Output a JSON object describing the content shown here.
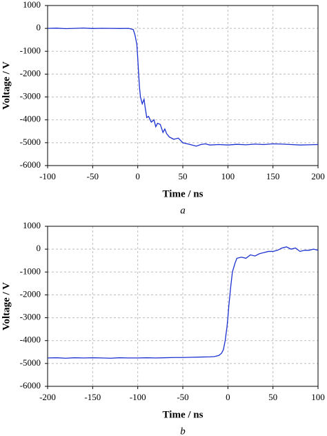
{
  "chart_data": [
    {
      "type": "line",
      "caption": "a",
      "xlabel": "Time / ns",
      "ylabel": "Voltage / V",
      "xlim": [
        -100,
        200
      ],
      "xticks": [
        -100,
        -50,
        0,
        50,
        100,
        150,
        200
      ],
      "ylim": [
        -6000,
        1000
      ],
      "yticks": [
        1000,
        0,
        -1000,
        -2000,
        -3000,
        -4000,
        -5000,
        -6000
      ],
      "grid": true,
      "series": [
        {
          "color": "#1a2fd0",
          "x": [
            -100,
            -90,
            -80,
            -70,
            -60,
            -50,
            -40,
            -30,
            -20,
            -10,
            -5,
            -3,
            -1,
            0,
            1,
            2,
            3,
            5,
            7,
            8,
            10,
            12,
            15,
            18,
            20,
            22,
            25,
            28,
            30,
            32,
            35,
            40,
            45,
            50,
            55,
            60,
            65,
            70,
            75,
            80,
            90,
            100,
            110,
            120,
            130,
            140,
            150,
            160,
            170,
            180,
            190,
            200
          ],
          "values": [
            0,
            10,
            -10,
            0,
            15,
            -5,
            5,
            0,
            -5,
            0,
            -50,
            -300,
            -700,
            -1300,
            -2000,
            -2600,
            -3000,
            -3300,
            -3100,
            -3400,
            -3900,
            -3850,
            -4100,
            -4000,
            -4300,
            -4150,
            -4200,
            -4550,
            -4400,
            -4600,
            -4750,
            -4850,
            -4800,
            -5000,
            -5050,
            -5100,
            -5150,
            -5080,
            -5050,
            -5100,
            -5080,
            -5100,
            -5070,
            -5090,
            -5060,
            -5080,
            -5050,
            -5060,
            -5080,
            -5100,
            -5090,
            -5080
          ]
        }
      ]
    },
    {
      "type": "line",
      "caption": "b",
      "xlabel": "Time / ns",
      "ylabel": "Voltage / V",
      "xlim": [
        -200,
        100
      ],
      "xticks": [
        -200,
        -150,
        -100,
        -50,
        0,
        50,
        100
      ],
      "ylim": [
        -6000,
        1000
      ],
      "yticks": [
        1000,
        0,
        -1000,
        -2000,
        -3000,
        -4000,
        -5000,
        -6000
      ],
      "grid": true,
      "series": [
        {
          "color": "#1a2fd0",
          "x": [
            -200,
            -190,
            -180,
            -170,
            -160,
            -150,
            -140,
            -130,
            -120,
            -110,
            -100,
            -90,
            -80,
            -70,
            -60,
            -50,
            -40,
            -30,
            -20,
            -15,
            -10,
            -7,
            -5,
            -3,
            -1,
            0,
            1,
            3,
            5,
            8,
            10,
            15,
            20,
            25,
            30,
            35,
            40,
            45,
            50,
            55,
            60,
            65,
            70,
            75,
            80,
            85,
            90,
            95,
            100
          ],
          "values": [
            -4760,
            -4750,
            -4770,
            -4750,
            -4760,
            -4750,
            -4760,
            -4770,
            -4750,
            -4760,
            -4760,
            -4750,
            -4760,
            -4750,
            -4740,
            -4740,
            -4730,
            -4720,
            -4710,
            -4700,
            -4650,
            -4550,
            -4400,
            -4000,
            -3400,
            -3000,
            -2500,
            -1700,
            -1000,
            -600,
            -400,
            -350,
            -400,
            -250,
            -300,
            -200,
            -150,
            -100,
            -100,
            -50,
            50,
            100,
            0,
            50,
            -100,
            -50,
            -50,
            0,
            -50
          ]
        }
      ]
    }
  ]
}
